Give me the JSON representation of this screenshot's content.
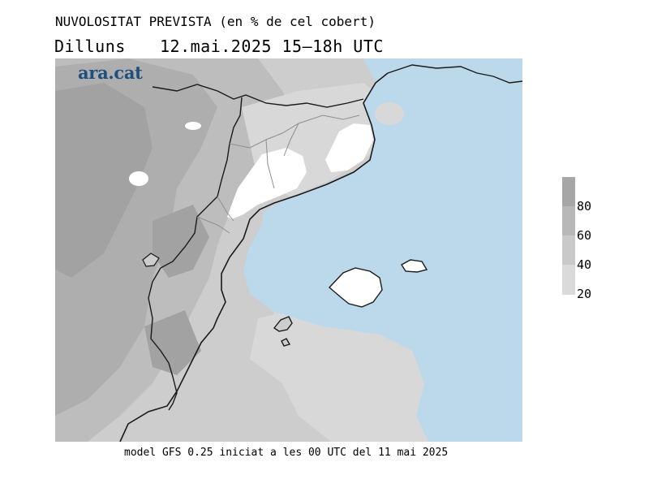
{
  "header": {
    "title": "NUVOLOSITAT PREVISTA (en % de cel cobert)",
    "day": "Dilluns",
    "valid_time": "12.mai.2025 15–18h UTC"
  },
  "brand": {
    "logo_text": "ara.cat",
    "color": "#1e4f7f"
  },
  "legend": {
    "labels": [
      "80",
      "60",
      "40",
      "20"
    ],
    "colors": [
      "#a6a6a6",
      "#b8b8b8",
      "#c9c9c9",
      "#dadada"
    ]
  },
  "map": {
    "sea_color": "#bcd9ec",
    "clear_color": "#ffffff",
    "coastline_color": "#1a1a1a"
  },
  "footer": {
    "model_info": "model GFS 0.25 iniciat a les 00 UTC del 11 mai 2025"
  }
}
